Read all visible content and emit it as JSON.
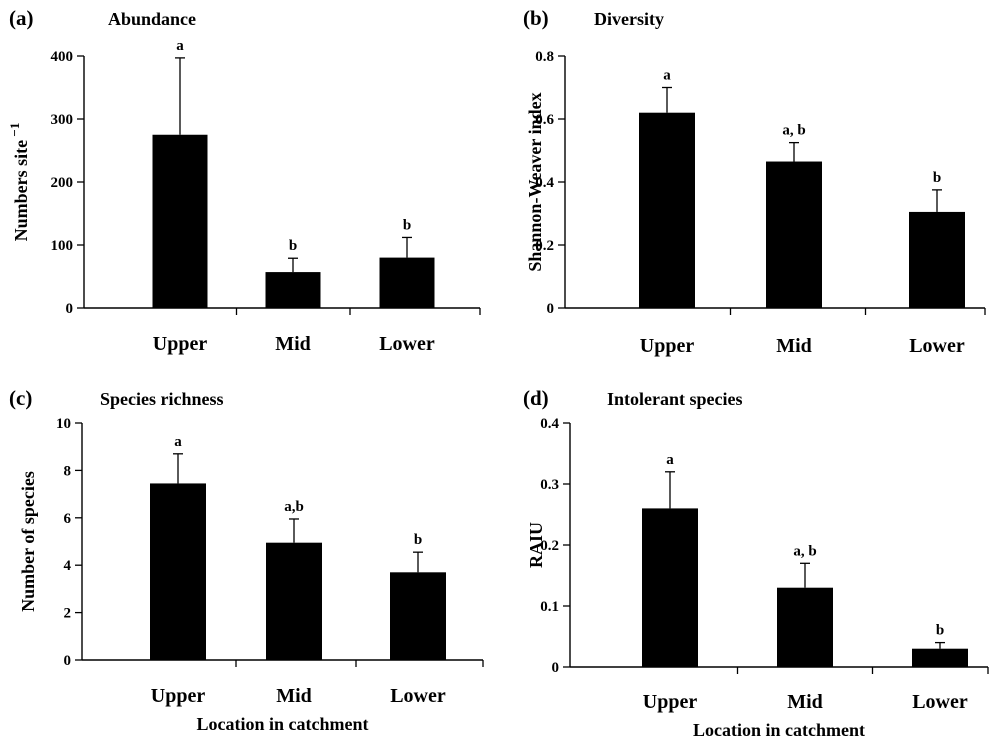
{
  "chart_data": [
    {
      "type": "bar",
      "panel_label": "(a)",
      "title": "Abundance",
      "ylabel": "Numbers site",
      "ylabel_superscript": "−1",
      "xlabel": "",
      "categories": [
        "Upper",
        "Mid",
        "Lower"
      ],
      "values": [
        275,
        57,
        80
      ],
      "errors": [
        122,
        22,
        32
      ],
      "significance": [
        "a",
        "b",
        "b"
      ],
      "ylim": [
        0,
        400
      ],
      "yticks": [
        "0",
        "100",
        "200",
        "300",
        "400"
      ],
      "bar_color": "#000000",
      "grid": false,
      "legend": "none"
    },
    {
      "type": "bar",
      "panel_label": "(b)",
      "title": "Diversity",
      "ylabel": "Shannon-Weaver index",
      "ylabel_superscript": "",
      "xlabel": "",
      "categories": [
        "Upper",
        "Mid",
        "Lower"
      ],
      "values": [
        0.62,
        0.465,
        0.305
      ],
      "errors": [
        0.08,
        0.06,
        0.07
      ],
      "significance": [
        "a",
        "a, b",
        "b"
      ],
      "ylim": [
        0,
        0.8
      ],
      "yticks": [
        "0",
        "0.2",
        "0.4",
        "0.6",
        "0.8"
      ],
      "bar_color": "#000000",
      "grid": false,
      "legend": "none"
    },
    {
      "type": "bar",
      "panel_label": "(c)",
      "title": "Species richness",
      "ylabel": "Number of species",
      "ylabel_superscript": "",
      "xlabel": "Location in catchment",
      "categories": [
        "Upper",
        "Mid",
        "Lower"
      ],
      "values": [
        7.45,
        4.95,
        3.7
      ],
      "errors": [
        1.25,
        1.0,
        0.85
      ],
      "significance": [
        "a",
        "a,b",
        "b"
      ],
      "ylim": [
        0,
        10
      ],
      "yticks": [
        "0",
        "2",
        "4",
        "6",
        "8",
        "10"
      ],
      "bar_color": "#000000",
      "grid": false,
      "legend": "none"
    },
    {
      "type": "bar",
      "panel_label": "(d)",
      "title": "Intolerant species",
      "ylabel": "RAIU",
      "ylabel_superscript": "",
      "xlabel": "Location in catchment",
      "categories": [
        "Upper",
        "Mid",
        "Lower"
      ],
      "values": [
        0.26,
        0.13,
        0.03
      ],
      "errors": [
        0.06,
        0.04,
        0.01
      ],
      "significance": [
        "a",
        "a, b",
        "b"
      ],
      "ylim": [
        0,
        0.4
      ],
      "yticks": [
        "0",
        "0.1",
        "0.2",
        "0.3",
        "0.4"
      ],
      "bar_color": "#000000",
      "grid": false,
      "legend": "none"
    }
  ]
}
